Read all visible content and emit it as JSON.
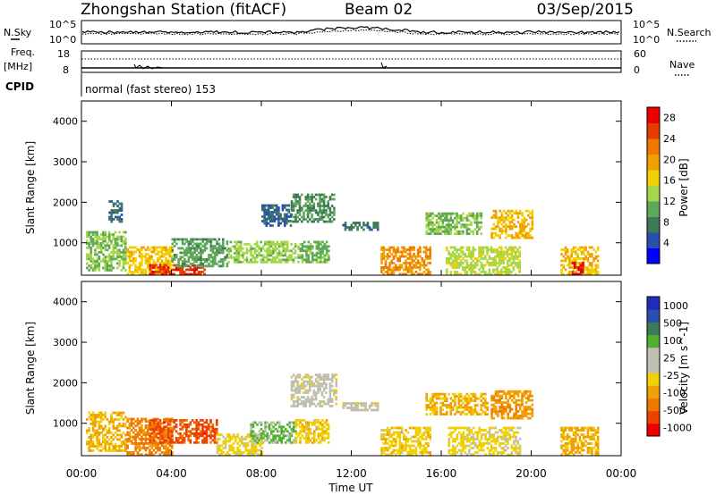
{
  "header": {
    "title": "Zhongshan Station (fitACF)",
    "beam": "Beam 02",
    "date": "03/Sep/2015"
  },
  "noise_panel": {
    "left_label": "N.Sky",
    "right_label": "N.Search",
    "top_tick": "10^5",
    "bottom_tick": "10^0"
  },
  "freq_panel": {
    "left_label_top": "Freq.",
    "left_label_units": "[MHz]",
    "right_label": "Nave",
    "left_ticks": [
      "18",
      "8"
    ],
    "right_ticks": [
      "60",
      "0"
    ]
  },
  "cpid_panel": {
    "label": "CPID",
    "program": "normal (fast stereo) 153"
  },
  "colors": {
    "power_scale": [
      "#0000ff",
      "#2a4fb0",
      "#3f7a58",
      "#5ea85a",
      "#a6d64a",
      "#f0d000",
      "#f0a000",
      "#f07800",
      "#e63c00",
      "#ee0000"
    ],
    "velocity_scale": [
      "#ee0000",
      "#f04000",
      "#f07800",
      "#f0a000",
      "#f0d000",
      "#c0c0b0",
      "#c0c0b0",
      "#50b030",
      "#3f7a58",
      "#2a4fb0",
      "#1e2dbe"
    ]
  },
  "chart_data": [
    {
      "type": "heatmap",
      "name": "power",
      "xlabel": "",
      "ylabel": "Slant Range [km]",
      "x_ticks": [
        "00:00",
        "04:00",
        "08:00",
        "12:00",
        "16:00",
        "20:00",
        "00:00"
      ],
      "y_ticks": [
        "1000",
        "2000",
        "3000",
        "4000"
      ],
      "xlim_hours": [
        0,
        24
      ],
      "ylim_km": [
        200,
        4500
      ],
      "colorbar": {
        "label": "Power [dB]",
        "ticks": [
          "4",
          "8",
          "12",
          "16",
          "20",
          "24",
          "28"
        ],
        "range": [
          0,
          30
        ]
      },
      "regions": [
        {
          "t0": 0.2,
          "t1": 2.0,
          "r0": 300,
          "r1": 1250,
          "v": 12
        },
        {
          "t0": 1.2,
          "t1": 1.8,
          "r0": 1500,
          "r1": 2000,
          "v": 6
        },
        {
          "t0": 2.0,
          "t1": 4.0,
          "r0": 200,
          "r1": 900,
          "v": 17
        },
        {
          "t0": 3.0,
          "t1": 5.5,
          "r0": 200,
          "r1": 450,
          "v": 26
        },
        {
          "t0": 4.0,
          "t1": 6.5,
          "r0": 400,
          "r1": 1100,
          "v": 10
        },
        {
          "t0": 6.5,
          "t1": 9.5,
          "r0": 500,
          "r1": 1000,
          "v": 13
        },
        {
          "t0": 8.0,
          "t1": 9.3,
          "r0": 1400,
          "r1": 1950,
          "v": 6
        },
        {
          "t0": 9.3,
          "t1": 11.2,
          "r0": 1500,
          "r1": 2200,
          "v": 9
        },
        {
          "t0": 9.6,
          "t1": 11.0,
          "r0": 500,
          "r1": 1050,
          "v": 11
        },
        {
          "t0": 11.6,
          "t1": 13.2,
          "r0": 1300,
          "r1": 1500,
          "v": 7
        },
        {
          "t0": 13.3,
          "t1": 15.5,
          "r0": 200,
          "r1": 900,
          "v": 21
        },
        {
          "t0": 15.3,
          "t1": 17.8,
          "r0": 1200,
          "r1": 1700,
          "v": 12
        },
        {
          "t0": 16.2,
          "t1": 19.5,
          "r0": 200,
          "r1": 900,
          "v": 14
        },
        {
          "t0": 18.2,
          "t1": 20.0,
          "r0": 1100,
          "r1": 1800,
          "v": 18
        },
        {
          "t0": 21.3,
          "t1": 23.0,
          "r0": 200,
          "r1": 900,
          "v": 18
        },
        {
          "t0": 21.8,
          "t1": 22.3,
          "r0": 200,
          "r1": 500,
          "v": 28
        }
      ]
    },
    {
      "type": "heatmap",
      "name": "velocity",
      "xlabel": "Time UT",
      "ylabel": "Slant Range [km]",
      "x_ticks": [
        "00:00",
        "04:00",
        "08:00",
        "12:00",
        "16:00",
        "20:00",
        "00:00"
      ],
      "y_ticks": [
        "1000",
        "2000",
        "3000",
        "4000"
      ],
      "xlim_hours": [
        0,
        24
      ],
      "ylim_km": [
        200,
        4500
      ],
      "colorbar": {
        "label": "Velocity [m s^-1]",
        "ticks": [
          "1000",
          "500",
          "100",
          "25",
          "-25",
          "-100",
          "-500",
          "-1000"
        ],
        "range": [
          -1000,
          1000
        ]
      },
      "regions": [
        {
          "t0": 0.2,
          "t1": 2.0,
          "r0": 300,
          "r1": 1250,
          "v": -300
        },
        {
          "t0": 2.0,
          "t1": 4.0,
          "r0": 200,
          "r1": 1100,
          "v": -500
        },
        {
          "t0": 3.0,
          "t1": 6.0,
          "r0": 500,
          "r1": 1100,
          "v": -700
        },
        {
          "t0": 6.0,
          "t1": 8.0,
          "r0": 200,
          "r1": 700,
          "v": -150
        },
        {
          "t0": 7.5,
          "t1": 9.5,
          "r0": 500,
          "r1": 1000,
          "v": 300
        },
        {
          "t0": 9.3,
          "t1": 11.3,
          "r0": 1400,
          "r1": 2200,
          "v": 0
        },
        {
          "t0": 9.5,
          "t1": 11.0,
          "r0": 500,
          "r1": 1100,
          "v": -200
        },
        {
          "t0": 11.6,
          "t1": 13.2,
          "r0": 1300,
          "r1": 1500,
          "v": 0
        },
        {
          "t0": 13.3,
          "t1": 15.5,
          "r0": 200,
          "r1": 900,
          "v": -200
        },
        {
          "t0": 15.3,
          "t1": 18.0,
          "r0": 1200,
          "r1": 1700,
          "v": -300
        },
        {
          "t0": 16.3,
          "t1": 19.5,
          "r0": 200,
          "r1": 900,
          "v": -150
        },
        {
          "t0": 18.2,
          "t1": 20.0,
          "r0": 1100,
          "r1": 1800,
          "v": -400
        },
        {
          "t0": 21.3,
          "t1": 23.0,
          "r0": 200,
          "r1": 900,
          "v": -300
        }
      ]
    }
  ]
}
